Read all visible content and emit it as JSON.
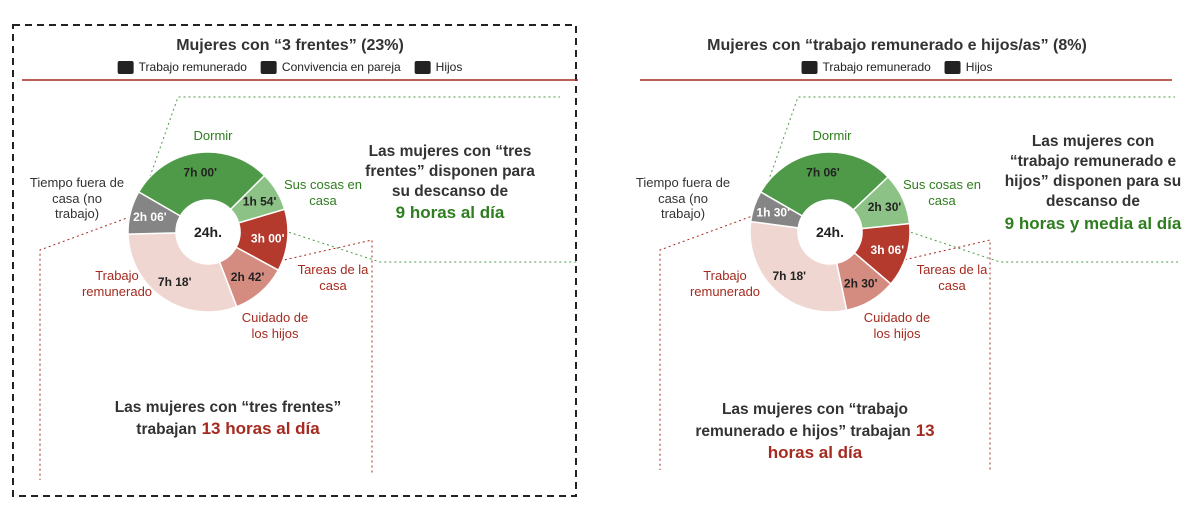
{
  "chart_data": [
    {
      "type": "pie",
      "title": "Mujeres con “3 frentes” (23%)",
      "legend_items": [
        "Trabajo remunerado",
        "Convivencia en pareja",
        "Hijos"
      ],
      "center_label": "24h.",
      "categories": [
        "Dormir",
        "Sus cosas en casa",
        "Tareas de la casa",
        "Cuidado de los hijos",
        "Trabajo remunerado",
        "Tiempo fuera de casa (no trabajo)"
      ],
      "values": [
        7,
        1.9,
        3,
        2.7,
        7.3,
        2.1
      ],
      "value_labels": [
        "7h 00'",
        "1h 54'",
        "3h 00'",
        "2h 42'",
        "7h 18'",
        "2h 06'"
      ],
      "colors": [
        "#4f9a48",
        "#8cc286",
        "#b43a2e",
        "#d48b80",
        "#efd6d1",
        "#858585"
      ],
      "note_rest": [
        "Las mujeres con “tres frentes” disponen para su descanso de",
        "9 horas al día"
      ],
      "note_work": [
        "Las mujeres con “tres frentes” trabajan",
        "13 horas al día"
      ]
    },
    {
      "type": "pie",
      "title": "Mujeres con “trabajo remunerado e hijos/as” (8%)",
      "legend_items": [
        "Trabajo remunerado",
        "Hijos"
      ],
      "center_label": "24h.",
      "categories": [
        "Dormir",
        "Sus cosas en casa",
        "Tareas de la casa",
        "Cuidado de los hijos",
        "Trabajo remunerado",
        "Tiempo fuera de casa (no trabajo)"
      ],
      "values": [
        7.1,
        2.5,
        3.1,
        2.5,
        7.3,
        1.5
      ],
      "value_labels": [
        "7h 06'",
        "2h 30'",
        "3h 06'",
        "2h 30'",
        "7h 18'",
        "1h 30'"
      ],
      "colors": [
        "#4f9a48",
        "#8cc286",
        "#b43a2e",
        "#d48b80",
        "#efd6d1",
        "#858585"
      ],
      "note_rest": [
        "Las mujeres con “trabajo remunerado e hijos” disponen para su descanso de",
        "9 horas y media al día"
      ],
      "note_work": [
        "Las mujeres con “trabajo remunerado e hijos” trabajan",
        "13 horas al día"
      ]
    }
  ]
}
